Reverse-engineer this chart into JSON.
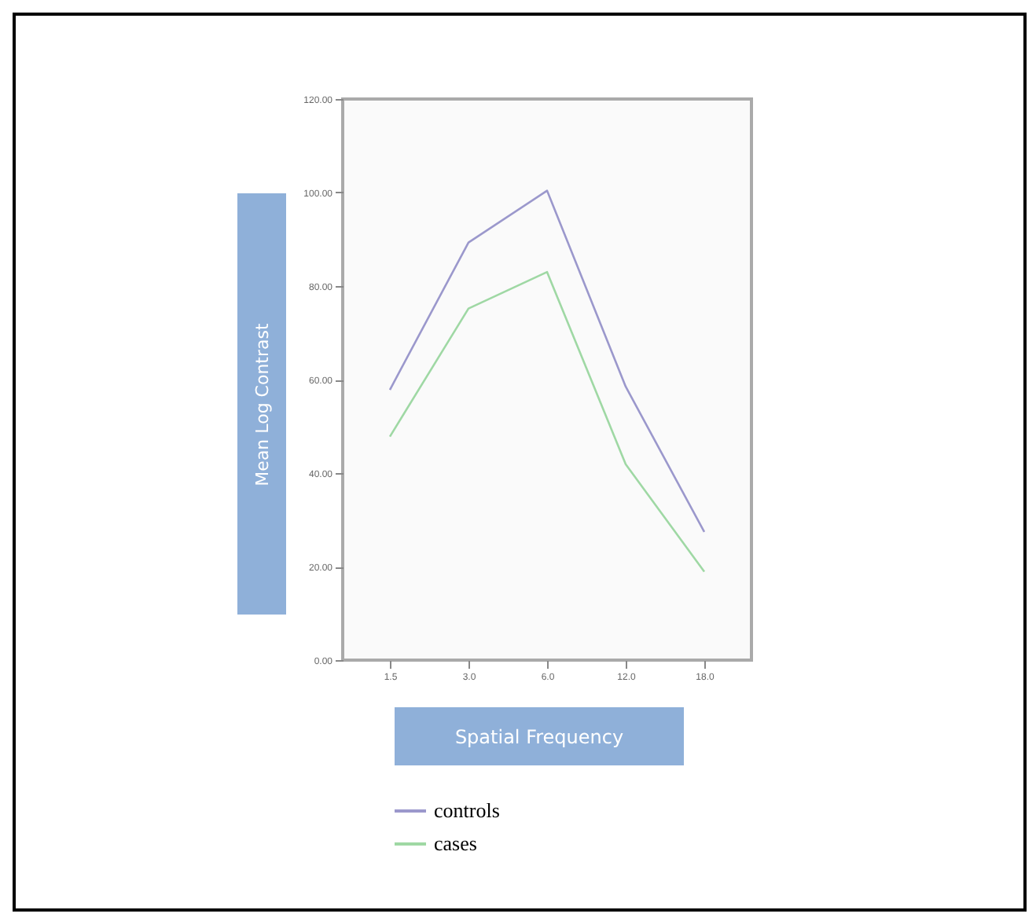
{
  "chart_data": {
    "type": "line",
    "xlabel": "Spatial Frequency",
    "ylabel": "Mean Log Contrast",
    "categories": [
      "1.5",
      "3.0",
      "6.0",
      "12.0",
      "18.0"
    ],
    "series": [
      {
        "name": "controls",
        "color": "#9b98cc",
        "values": [
          57.8,
          89.3,
          100.4,
          58.5,
          27.4
        ]
      },
      {
        "name": "cases",
        "color": "#9fd8a4",
        "values": [
          47.8,
          75.2,
          83.0,
          41.9,
          18.9
        ]
      }
    ],
    "ylim": [
      0,
      120
    ],
    "yticks": [
      {
        "value": 0,
        "label": "0.00"
      },
      {
        "value": 20,
        "label": "20.00"
      },
      {
        "value": 40,
        "label": "40.00"
      },
      {
        "value": 60,
        "label": "60.00"
      },
      {
        "value": 80,
        "label": "80.00"
      },
      {
        "value": 100,
        "label": "100.00"
      },
      {
        "value": 120,
        "label": "120.00"
      }
    ],
    "grid": false,
    "legend": "bottom",
    "marker": "none",
    "line_style": "solid"
  }
}
